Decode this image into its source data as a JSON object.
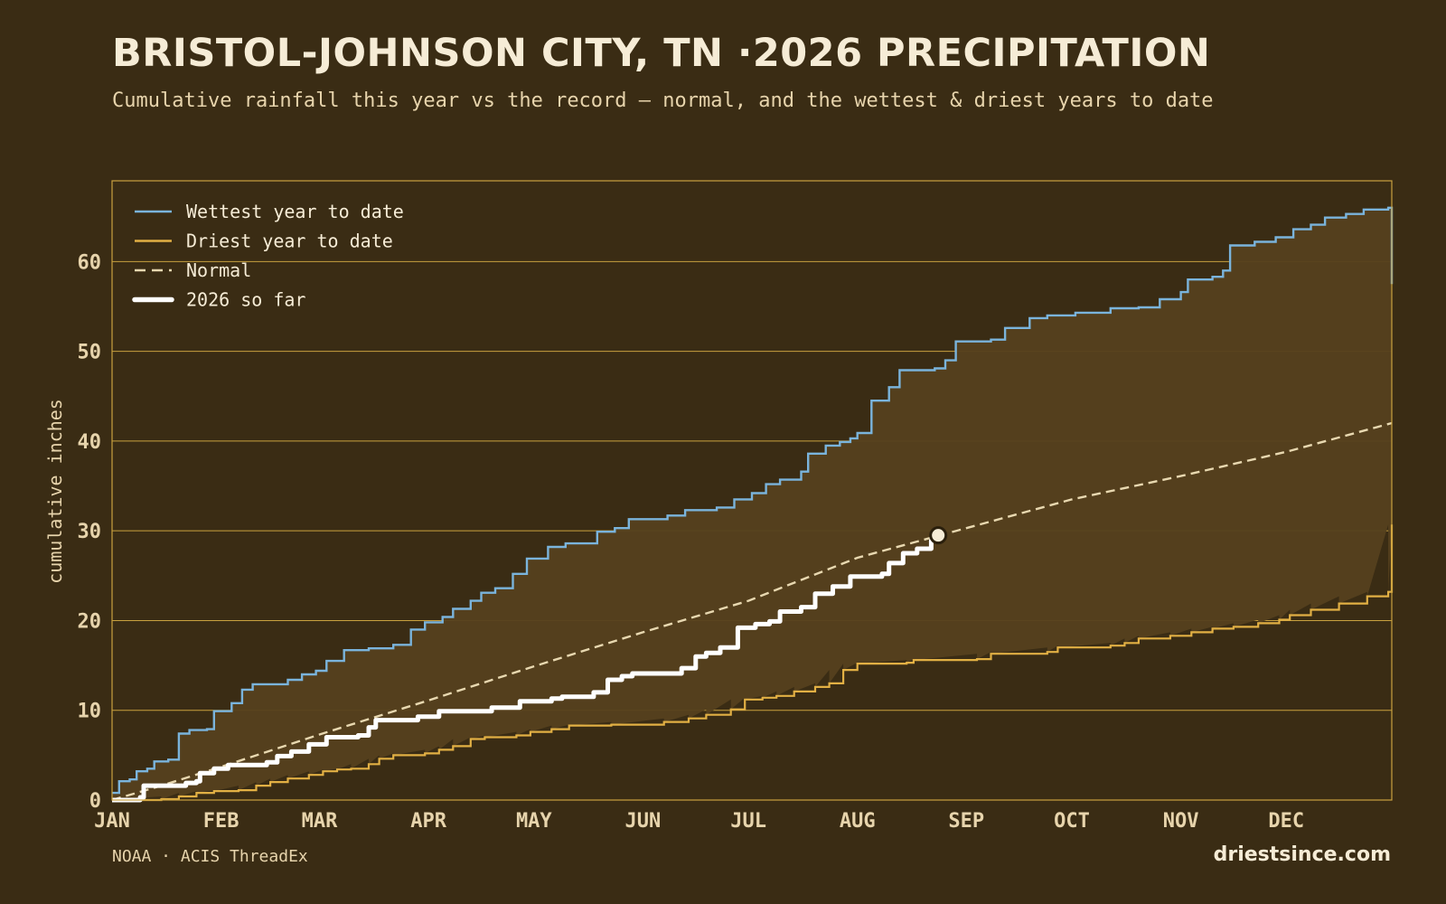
{
  "title": "BRISTOL-JOHNSON CITY, TN ·2026 PRECIPITATION",
  "subtitle": "Cumulative rainfall this year vs the record — normal, and the wettest & driest years to date",
  "source": "NOAA · ACIS ThreadEx",
  "brand": "driestsince.com",
  "colors": {
    "background": "#3a2c14",
    "band": "#55401e",
    "grid": "#c9a13f",
    "wettest": "#7ab4dc",
    "driest": "#e2b044",
    "normal": "#e8d8b0",
    "current": "#ffffff"
  },
  "chart_data": {
    "type": "line",
    "title": "BRISTOL-JOHNSON CITY, TN ·2026 PRECIPITATION",
    "xlabel": "",
    "ylabel": "cumulative inches",
    "ylim": [
      0,
      69
    ],
    "xlim": [
      "2026-01-01",
      "2026-12-31"
    ],
    "yticks": [
      0,
      10,
      20,
      30,
      40,
      50,
      60
    ],
    "xticks": [
      {
        "label": "JAN",
        "date": "2026-01-01"
      },
      {
        "label": "FEB",
        "date": "2026-02-01"
      },
      {
        "label": "MAR",
        "date": "2026-03-01"
      },
      {
        "label": "APR",
        "date": "2026-04-01"
      },
      {
        "label": "MAY",
        "date": "2026-05-01"
      },
      {
        "label": "JUN",
        "date": "2026-06-01"
      },
      {
        "label": "JUL",
        "date": "2026-07-01"
      },
      {
        "label": "AUG",
        "date": "2026-08-01"
      },
      {
        "label": "SEP",
        "date": "2026-09-01"
      },
      {
        "label": "OCT",
        "date": "2026-10-01"
      },
      {
        "label": "NOV",
        "date": "2026-11-01"
      },
      {
        "label": "DEC",
        "date": "2026-12-01"
      }
    ],
    "grid": true,
    "legend_position": "top-left",
    "series": [
      {
        "name": "Wettest year to date",
        "color": "#7ab4dc",
        "style": "solid",
        "points": [
          [
            "2026-01-01",
            0.8
          ],
          [
            "2026-01-03",
            2.1
          ],
          [
            "2026-01-06",
            2.3
          ],
          [
            "2026-01-08",
            3.2
          ],
          [
            "2026-01-11",
            3.5
          ],
          [
            "2026-01-13",
            4.3
          ],
          [
            "2026-01-17",
            4.5
          ],
          [
            "2026-01-20",
            7.4
          ],
          [
            "2026-01-23",
            7.8
          ],
          [
            "2026-01-28",
            7.9
          ],
          [
            "2026-01-30",
            9.9
          ],
          [
            "2026-02-04",
            10.8
          ],
          [
            "2026-02-07",
            12.3
          ],
          [
            "2026-02-10",
            12.9
          ],
          [
            "2026-02-20",
            13.4
          ],
          [
            "2026-02-24",
            14.0
          ],
          [
            "2026-02-28",
            14.4
          ],
          [
            "2026-03-03",
            15.5
          ],
          [
            "2026-03-08",
            16.7
          ],
          [
            "2026-03-15",
            16.9
          ],
          [
            "2026-03-22",
            17.3
          ],
          [
            "2026-03-27",
            19.0
          ],
          [
            "2026-03-31",
            19.8
          ],
          [
            "2026-04-05",
            20.4
          ],
          [
            "2026-04-08",
            21.3
          ],
          [
            "2026-04-13",
            22.2
          ],
          [
            "2026-04-16",
            23.1
          ],
          [
            "2026-04-20",
            23.6
          ],
          [
            "2026-04-25",
            25.2
          ],
          [
            "2026-04-29",
            26.9
          ],
          [
            "2026-05-05",
            28.2
          ],
          [
            "2026-05-10",
            28.6
          ],
          [
            "2026-05-19",
            29.9
          ],
          [
            "2026-05-24",
            30.3
          ],
          [
            "2026-05-28",
            31.3
          ],
          [
            "2026-06-08",
            31.7
          ],
          [
            "2026-06-13",
            32.3
          ],
          [
            "2026-06-22",
            32.6
          ],
          [
            "2026-06-27",
            33.5
          ],
          [
            "2026-07-02",
            34.2
          ],
          [
            "2026-07-06",
            35.2
          ],
          [
            "2026-07-10",
            35.7
          ],
          [
            "2026-07-16",
            36.6
          ],
          [
            "2026-07-18",
            38.6
          ],
          [
            "2026-07-23",
            39.5
          ],
          [
            "2026-07-27",
            39.9
          ],
          [
            "2026-07-30",
            40.3
          ],
          [
            "2026-08-01",
            40.9
          ],
          [
            "2026-08-05",
            44.5
          ],
          [
            "2026-08-10",
            46.0
          ],
          [
            "2026-08-13",
            47.9
          ],
          [
            "2026-08-23",
            48.1
          ],
          [
            "2026-08-26",
            49.0
          ],
          [
            "2026-08-29",
            51.1
          ],
          [
            "2026-09-08",
            51.3
          ],
          [
            "2026-09-12",
            52.6
          ],
          [
            "2026-09-19",
            53.7
          ],
          [
            "2026-09-24",
            54.0
          ],
          [
            "2026-10-02",
            54.3
          ],
          [
            "2026-10-12",
            54.8
          ],
          [
            "2026-10-20",
            54.9
          ],
          [
            "2026-10-26",
            55.8
          ],
          [
            "2026-11-01",
            56.6
          ],
          [
            "2026-11-03",
            58.0
          ],
          [
            "2026-11-10",
            58.3
          ],
          [
            "2026-11-13",
            59.0
          ],
          [
            "2026-11-15",
            61.8
          ],
          [
            "2026-11-22",
            62.2
          ],
          [
            "2026-11-28",
            62.7
          ],
          [
            "2026-12-03",
            63.6
          ],
          [
            "2026-12-08",
            64.1
          ],
          [
            "2026-12-12",
            64.9
          ],
          [
            "2026-12-18",
            65.3
          ],
          [
            "2026-12-23",
            65.8
          ],
          [
            "2026-12-30",
            66.0
          ],
          [
            "2026-12-31",
            57.5
          ]
        ]
      },
      {
        "name": "Driest year to date",
        "color": "#e2b044",
        "style": "solid",
        "points": [
          [
            "2026-01-01",
            0.0
          ],
          [
            "2026-01-15",
            0.1
          ],
          [
            "2026-01-20",
            0.4
          ],
          [
            "2026-01-25",
            0.8
          ],
          [
            "2026-01-30",
            1.0
          ],
          [
            "2026-02-06",
            1.1
          ],
          [
            "2026-02-11",
            1.6
          ],
          [
            "2026-02-15",
            2.0
          ],
          [
            "2026-02-20",
            2.4
          ],
          [
            "2026-02-26",
            2.8
          ],
          [
            "2026-03-02",
            3.2
          ],
          [
            "2026-03-06",
            3.4
          ],
          [
            "2026-03-10",
            3.5
          ],
          [
            "2026-03-15",
            4.0
          ],
          [
            "2026-03-18",
            4.6
          ],
          [
            "2026-03-22",
            5.0
          ],
          [
            "2026-03-31",
            5.2
          ],
          [
            "2026-04-04",
            5.6
          ],
          [
            "2026-04-08",
            6.0
          ],
          [
            "2026-04-13",
            6.8
          ],
          [
            "2026-04-17",
            7.0
          ],
          [
            "2026-04-26",
            7.2
          ],
          [
            "2026-04-30",
            7.6
          ],
          [
            "2026-05-06",
            7.9
          ],
          [
            "2026-05-11",
            8.3
          ],
          [
            "2026-05-23",
            8.4
          ],
          [
            "2026-06-07",
            8.7
          ],
          [
            "2026-06-14",
            9.1
          ],
          [
            "2026-06-19",
            9.5
          ],
          [
            "2026-06-26",
            10.1
          ],
          [
            "2026-06-30",
            11.2
          ],
          [
            "2026-07-05",
            11.4
          ],
          [
            "2026-07-09",
            11.6
          ],
          [
            "2026-07-14",
            12.1
          ],
          [
            "2026-07-20",
            12.6
          ],
          [
            "2026-07-24",
            13.0
          ],
          [
            "2026-07-28",
            14.5
          ],
          [
            "2026-08-01",
            15.2
          ],
          [
            "2026-08-15",
            15.3
          ],
          [
            "2026-08-17",
            15.6
          ],
          [
            "2026-09-04",
            15.7
          ],
          [
            "2026-09-08",
            16.3
          ],
          [
            "2026-09-24",
            16.5
          ],
          [
            "2026-09-27",
            17.0
          ],
          [
            "2026-10-12",
            17.2
          ],
          [
            "2026-10-16",
            17.5
          ],
          [
            "2026-10-20",
            18.0
          ],
          [
            "2026-10-29",
            18.3
          ],
          [
            "2026-11-04",
            18.7
          ],
          [
            "2026-11-10",
            19.1
          ],
          [
            "2026-11-16",
            19.3
          ],
          [
            "2026-11-23",
            19.7
          ],
          [
            "2026-11-29",
            20.1
          ],
          [
            "2026-12-02",
            20.6
          ],
          [
            "2026-12-08",
            21.2
          ],
          [
            "2026-12-16",
            21.9
          ],
          [
            "2026-12-24",
            22.7
          ],
          [
            "2026-12-30",
            23.2
          ],
          [
            "2026-12-31",
            30.7
          ]
        ]
      },
      {
        "name": "Normal",
        "color": "#e8d8b0",
        "style": "dashed",
        "points": [
          [
            "2026-01-01",
            0.0
          ],
          [
            "2026-01-15",
            1.6
          ],
          [
            "2026-02-01",
            3.7
          ],
          [
            "2026-03-01",
            7.3
          ],
          [
            "2026-04-01",
            11.1
          ],
          [
            "2026-05-01",
            14.9
          ],
          [
            "2026-06-01",
            18.7
          ],
          [
            "2026-07-01",
            22.2
          ],
          [
            "2026-08-01",
            27.0
          ],
          [
            "2026-09-01",
            30.3
          ],
          [
            "2026-10-01",
            33.5
          ],
          [
            "2026-11-01",
            36.1
          ],
          [
            "2026-12-01",
            38.8
          ],
          [
            "2026-12-31",
            42.0
          ]
        ]
      },
      {
        "name": "2026 so far",
        "color": "#ffffff",
        "style": "bold",
        "points": [
          [
            "2026-01-01",
            0.0
          ],
          [
            "2026-01-09",
            0.3
          ],
          [
            "2026-01-10",
            1.6
          ],
          [
            "2026-01-22",
            1.9
          ],
          [
            "2026-01-25",
            2.1
          ],
          [
            "2026-01-26",
            3.0
          ],
          [
            "2026-01-30",
            3.5
          ],
          [
            "2026-02-03",
            3.9
          ],
          [
            "2026-02-14",
            4.2
          ],
          [
            "2026-02-17",
            4.9
          ],
          [
            "2026-02-21",
            5.4
          ],
          [
            "2026-02-26",
            6.2
          ],
          [
            "2026-03-03",
            7.0
          ],
          [
            "2026-03-12",
            7.2
          ],
          [
            "2026-03-15",
            8.1
          ],
          [
            "2026-03-17",
            8.9
          ],
          [
            "2026-03-29",
            9.3
          ],
          [
            "2026-04-04",
            9.9
          ],
          [
            "2026-04-19",
            10.3
          ],
          [
            "2026-04-27",
            11.0
          ],
          [
            "2026-05-06",
            11.3
          ],
          [
            "2026-05-09",
            11.5
          ],
          [
            "2026-05-18",
            12.0
          ],
          [
            "2026-05-22",
            13.4
          ],
          [
            "2026-05-26",
            13.8
          ],
          [
            "2026-05-29",
            14.1
          ],
          [
            "2026-06-12",
            14.7
          ],
          [
            "2026-06-16",
            16.0
          ],
          [
            "2026-06-19",
            16.4
          ],
          [
            "2026-06-23",
            17.0
          ],
          [
            "2026-06-28",
            19.2
          ],
          [
            "2026-07-03",
            19.6
          ],
          [
            "2026-07-07",
            19.9
          ],
          [
            "2026-07-10",
            21.0
          ],
          [
            "2026-07-16",
            21.5
          ],
          [
            "2026-07-20",
            23.0
          ],
          [
            "2026-07-25",
            23.8
          ],
          [
            "2026-07-30",
            24.9
          ],
          [
            "2026-08-08",
            25.2
          ],
          [
            "2026-08-10",
            26.4
          ],
          [
            "2026-08-14",
            27.5
          ],
          [
            "2026-08-18",
            28.0
          ],
          [
            "2026-08-22",
            28.9
          ],
          [
            "2026-08-24",
            29.5
          ]
        ]
      }
    ],
    "current_marker": {
      "date": "2026-08-24",
      "value": 29.5
    }
  },
  "legend": [
    {
      "label": "Wettest year to date",
      "color": "#7ab4dc",
      "style": "solid"
    },
    {
      "label": "Driest year to date",
      "color": "#e2b044",
      "style": "solid"
    },
    {
      "label": "Normal",
      "color": "#e8d8b0",
      "style": "dashed"
    },
    {
      "label": "2026 so far",
      "color": "#ffffff",
      "style": "bold"
    }
  ]
}
